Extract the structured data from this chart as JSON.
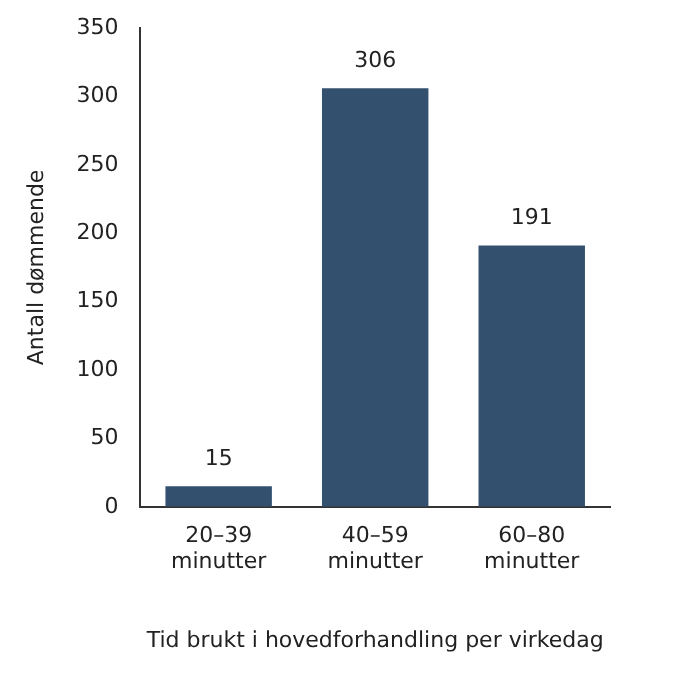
{
  "chart_data": {
    "type": "bar",
    "xlabel": "Tid brukt i hovedforhandling per virkedag",
    "ylabel": "Antall dømmende",
    "categories": [
      "20–39 minutter",
      "40–59 minutter",
      "60–80 minutter"
    ],
    "values": [
      15,
      306,
      191
    ],
    "color": "#34506f",
    "ylim": [
      0,
      350
    ],
    "yticks": [
      0,
      50,
      100,
      150,
      200,
      250,
      300,
      350
    ],
    "grid": false,
    "data_labels": true
  }
}
